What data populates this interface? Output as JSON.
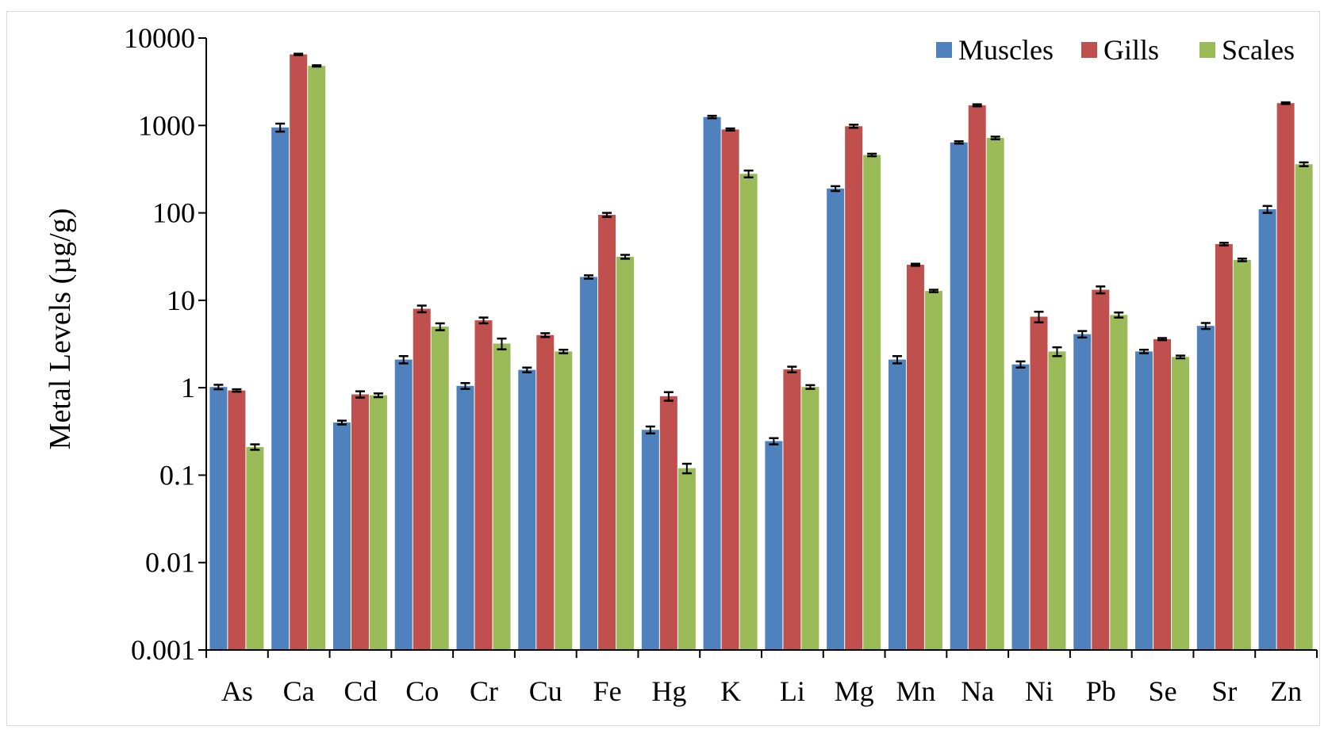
{
  "chart_data": {
    "type": "bar",
    "title": "",
    "xlabel": "",
    "ylabel": "Metal Levels (µg/g)",
    "yscale": "log",
    "ylim": [
      0.001,
      10000
    ],
    "yticks": [
      0.001,
      0.01,
      0.1,
      1,
      10,
      100,
      1000,
      10000
    ],
    "ytick_labels": [
      "0.001",
      "0.01",
      "0.1",
      "1",
      "10",
      "100",
      "1000",
      "10000"
    ],
    "legend_position": "top-right",
    "error_bars": true,
    "categories": [
      "As",
      "Ca",
      "Cd",
      "Co",
      "Cr",
      "Cu",
      "Fe",
      "Hg",
      "K",
      "Li",
      "Mg",
      "Mn",
      "Na",
      "Ni",
      "Pb",
      "Se",
      "Sr",
      "Zn"
    ],
    "series": [
      {
        "name": "Muscles",
        "color": "#4f81bd",
        "values": [
          1.02,
          950,
          0.4,
          2.1,
          1.05,
          1.6,
          18.5,
          0.33,
          1250,
          0.245,
          190,
          2.1,
          640,
          1.85,
          4.1,
          2.6,
          5.1,
          110
        ],
        "errors": [
          0.06,
          100,
          0.02,
          0.2,
          0.08,
          0.1,
          0.8,
          0.03,
          40,
          0.02,
          12,
          0.2,
          20,
          0.15,
          0.35,
          0.12,
          0.4,
          10
        ]
      },
      {
        "name": "Gills",
        "color": "#c0504d",
        "values": [
          0.93,
          6500,
          0.84,
          8.0,
          5.9,
          4.0,
          95,
          0.8,
          900,
          1.62,
          980,
          25.5,
          1700,
          6.5,
          13.2,
          3.6,
          44,
          1800
        ],
        "errors": [
          0.03,
          120,
          0.07,
          0.7,
          0.45,
          0.2,
          5,
          0.09,
          25,
          0.12,
          40,
          0.7,
          45,
          0.9,
          1.2,
          0.1,
          1.5,
          40
        ]
      },
      {
        "name": "Scales",
        "color": "#9bbb59",
        "values": [
          0.21,
          4800,
          0.82,
          5.0,
          3.2,
          2.6,
          31.5,
          0.12,
          280,
          1.02,
          460,
          12.8,
          720,
          2.6,
          6.8,
          2.25,
          29,
          360
        ],
        "errors": [
          0.015,
          80,
          0.04,
          0.45,
          0.45,
          0.12,
          1.6,
          0.015,
          25,
          0.05,
          15,
          0.4,
          25,
          0.3,
          0.45,
          0.08,
          1.0,
          18
        ]
      }
    ]
  }
}
